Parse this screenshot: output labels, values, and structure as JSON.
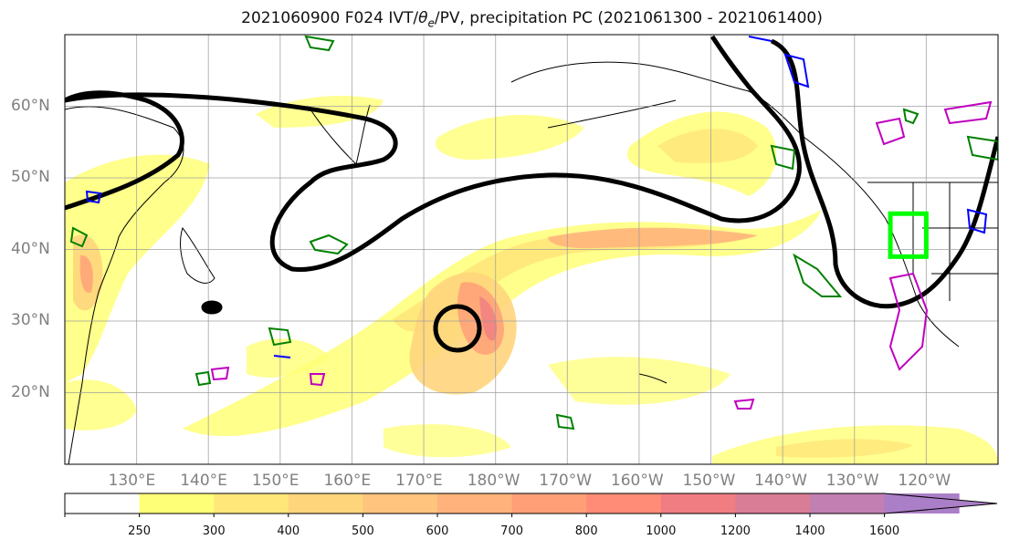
{
  "title": {
    "prefix": "2021060900 F024 IVT/",
    "theta": "θ",
    "theta_sub": "e",
    "suffix": "/PV, precipitation PC (2021061300 - 2021061400)"
  },
  "map": {
    "projection": "PlateCarree",
    "lon_range": [
      120,
      250
    ],
    "lat_range": [
      10,
      70
    ],
    "lat_ticks": [
      "20°N",
      "30°N",
      "40°N",
      "50°N",
      "60°N"
    ],
    "lon_ticks": [
      "130°E",
      "140°E",
      "150°E",
      "160°E",
      "170°E",
      "180°W",
      "170°W",
      "160°W",
      "150°W",
      "140°W",
      "130°W",
      "120°W"
    ],
    "grid": true,
    "highlight_box": {
      "color": "#00ff00",
      "lon_range": [
        235,
        240
      ],
      "lat_range": [
        39,
        45
      ]
    },
    "contours": {
      "black": "PV / dynamic tropopause",
      "green": "#008000",
      "blue": "#0000ff",
      "magenta": "#c000c0"
    }
  },
  "colorbar": {
    "levels": [
      "250",
      "300",
      "400",
      "500",
      "600",
      "700",
      "800",
      "1000",
      "1200",
      "1400",
      "1600"
    ],
    "colors": [
      "#ffffff",
      "#ffff77",
      "#ffe77a",
      "#ffd57c",
      "#ffc47e",
      "#ffb27c",
      "#ff9f78",
      "#ff8c76",
      "#f07d82",
      "#d97d97",
      "#c27fb2",
      "#ab7fc7"
    ],
    "extend": "max"
  }
}
